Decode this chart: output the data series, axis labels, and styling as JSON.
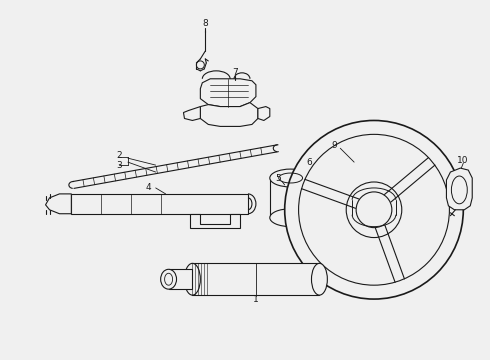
{
  "bg_color": "#f0f0f0",
  "line_color": "#1a1a1a",
  "lw": 0.8,
  "fig_width": 4.9,
  "fig_height": 3.6,
  "dpi": 100
}
